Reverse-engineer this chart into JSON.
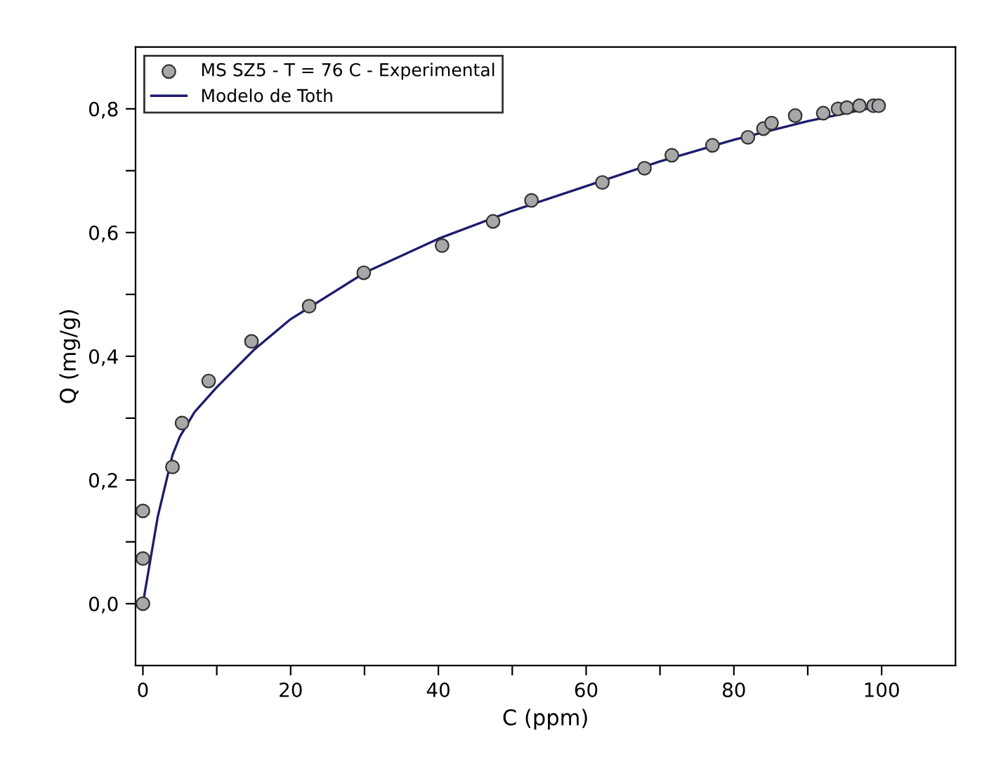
{
  "chart_data": {
    "type": "scatter",
    "xlabel": "C (ppm)",
    "ylabel": "Q (mg/g)",
    "xlim": [
      -1,
      110
    ],
    "ylim": [
      -0.1,
      0.9
    ],
    "xticks": [
      0,
      {
        "value": 10,
        "label": null
      },
      20,
      {
        "value": 30,
        "label": null
      },
      40,
      {
        "value": 50,
        "label": null
      },
      60,
      {
        "value": 70,
        "label": null
      },
      80,
      {
        "value": 90,
        "label": null
      },
      100
    ],
    "yticks": [
      {
        "value": 0,
        "label": "0,0"
      },
      {
        "value": 0.1,
        "label": null
      },
      {
        "value": 0.2,
        "label": "0,2"
      },
      {
        "value": 0.3,
        "label": null
      },
      {
        "value": 0.4,
        "label": "0,4"
      },
      {
        "value": 0.5,
        "label": null
      },
      {
        "value": 0.6,
        "label": "0,6"
      },
      {
        "value": 0.7,
        "label": null
      },
      {
        "value": 0.8,
        "label": "0,8"
      }
    ],
    "grid": false,
    "legend": "top left",
    "series": [
      {
        "name": "MS SZ5 - T = 76 C - Experimental",
        "marker": "circle",
        "color": "#a8a8a8",
        "x": [
          0,
          0,
          0,
          4,
          5.3,
          8.9,
          14.7,
          22.5,
          29.9,
          40.5,
          47.4,
          52.6,
          62.2,
          67.9,
          71.6,
          77.1,
          81.9,
          84,
          85.1,
          88.3,
          92.1,
          94.1,
          95.3,
          97,
          98.9,
          99.6
        ],
        "values": [
          0,
          0.073,
          0.15,
          0.221,
          0.292,
          0.36,
          0.424,
          0.481,
          0.535,
          0.579,
          0.618,
          0.652,
          0.681,
          0.704,
          0.725,
          0.741,
          0.754,
          0.768,
          0.777,
          0.789,
          0.793,
          0.8,
          0.802,
          0.805,
          0.805,
          0.805
        ]
      },
      {
        "name": "Modelo de Toth",
        "type": "line",
        "marker": "none",
        "line_style": "solid",
        "color": "#1c1c6e",
        "x": [
          0,
          1,
          2,
          3,
          4,
          5,
          7,
          10,
          15,
          20,
          30,
          40,
          50,
          60,
          70,
          80,
          90,
          100
        ],
        "values": [
          0,
          0.07,
          0.14,
          0.19,
          0.24,
          0.27,
          0.31,
          0.35,
          0.41,
          0.46,
          0.535,
          0.59,
          0.635,
          0.675,
          0.715,
          0.75,
          0.78,
          0.805
        ]
      }
    ]
  }
}
